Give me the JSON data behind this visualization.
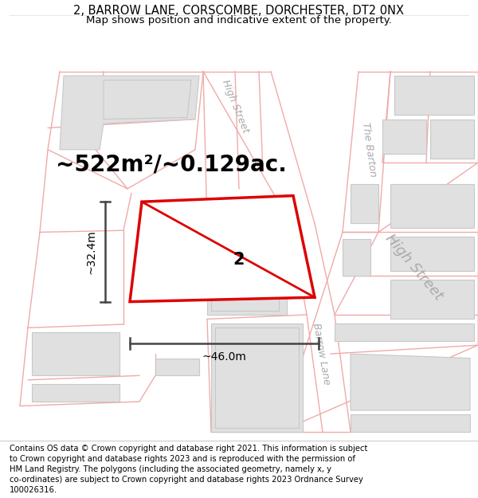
{
  "title_line1": "2, BARROW LANE, CORSCOMBE, DORCHESTER, DT2 0NX",
  "title_line2": "Map shows position and indicative extent of the property.",
  "area_text": "~522m²/~0.129ac.",
  "plot_label": "2",
  "width_label": "~46.0m",
  "height_label": "~32.4m",
  "footer_text": "Contains OS data © Crown copyright and database right 2021. This information is subject to Crown copyright and database rights 2023 and is reproduced with the permission of HM Land Registry. The polygons (including the associated geometry, namely x, y co-ordinates) are subject to Crown copyright and database rights 2023 Ordnance Survey 100026316.",
  "bg_color": "#ffffff",
  "map_bg": "#ffffff",
  "cadastral_color": "#f0aaaa",
  "building_fill": "#e0e0e0",
  "building_stroke": "#c8c8c8",
  "plot_fill": "#ffffff",
  "plot_stroke": "#dd0000",
  "measure_color": "#444444",
  "street_label_color": "#aaaaaa",
  "title_fontsize": 10.5,
  "subtitle_fontsize": 9.5,
  "area_fontsize": 20,
  "plot_label_fontsize": 15,
  "measure_fontsize": 10,
  "footer_fontsize": 7.2,
  "street_label_size_large": 13,
  "street_label_size_small": 9
}
